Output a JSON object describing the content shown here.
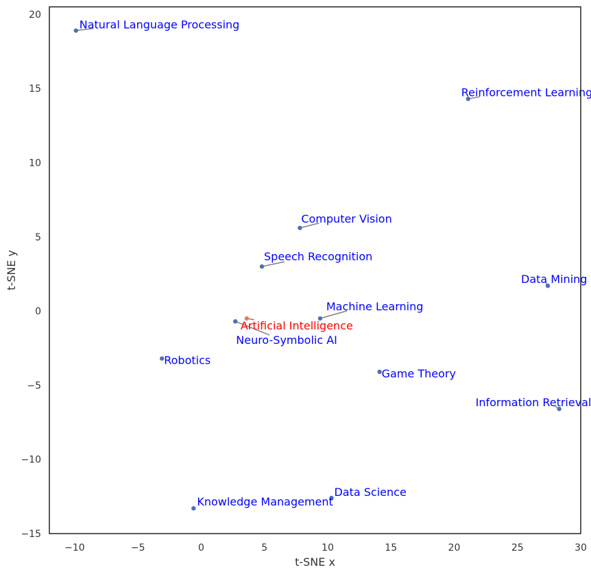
{
  "chart_data": {
    "type": "scatter",
    "title": "",
    "xlabel": "t-SNE x",
    "ylabel": "t-SNE y",
    "xlim": [
      -12,
      30
    ],
    "ylim": [
      -15,
      20.5
    ],
    "xticks": [
      "−10",
      "−5",
      "0",
      "5",
      "10",
      "15",
      "20",
      "25",
      "30"
    ],
    "xtick_values": [
      -10,
      -5,
      0,
      5,
      10,
      15,
      20,
      25,
      30
    ],
    "yticks": [
      "−15",
      "−10",
      "−5",
      "0",
      "5",
      "10",
      "15",
      "20"
    ],
    "ytick_values": [
      -15,
      -10,
      -5,
      0,
      5,
      10,
      15,
      20
    ],
    "grid": false,
    "colors": {
      "point": "#4c72b0",
      "highlight_point": "#dd8452",
      "label": "#0000ff",
      "highlight_label": "#ff0000",
      "leader": "#808080"
    },
    "points": [
      {
        "label": "Natural Language Processing",
        "x": -9.9,
        "y": 18.9,
        "highlight": false
      },
      {
        "label": "Reinforcement Learning",
        "x": 21.1,
        "y": 14.3,
        "highlight": false
      },
      {
        "label": "Computer Vision",
        "x": 7.8,
        "y": 5.6,
        "highlight": false
      },
      {
        "label": "Speech Recognition",
        "x": 4.8,
        "y": 3.0,
        "highlight": false
      },
      {
        "label": "Data Mining",
        "x": 27.4,
        "y": 1.7,
        "highlight": false
      },
      {
        "label": "Machine Learning",
        "x": 9.4,
        "y": -0.5,
        "highlight": false
      },
      {
        "label": "Artificial Intelligence",
        "x": 3.6,
        "y": -0.5,
        "highlight": true
      },
      {
        "label": "Neuro-Symbolic AI",
        "x": 2.7,
        "y": -0.7,
        "highlight": false
      },
      {
        "label": "Robotics",
        "x": -3.1,
        "y": -3.2,
        "highlight": false
      },
      {
        "label": "Game Theory",
        "x": 14.1,
        "y": -4.1,
        "highlight": false
      },
      {
        "label": "Information Retrieval",
        "x": 28.3,
        "y": -6.6,
        "highlight": false
      },
      {
        "label": "Data Science",
        "x": 10.3,
        "y": -12.6,
        "highlight": false
      },
      {
        "label": "Knowledge Management",
        "x": -0.6,
        "y": -13.3,
        "highlight": false
      }
    ]
  }
}
